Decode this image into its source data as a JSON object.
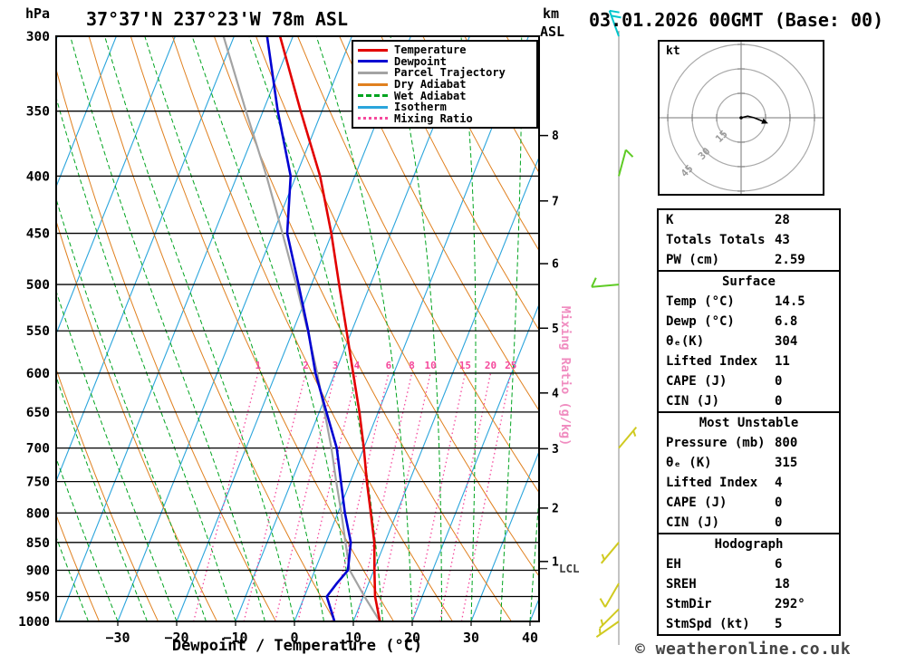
{
  "header": {
    "pressure_unit": "hPa",
    "title": "37°37'N 237°23'W 78m ASL",
    "alt_unit_1": "km",
    "alt_unit_2": "ASL",
    "datetime": "03.01.2026 00GMT (Base: 00)"
  },
  "axes": {
    "xlabel": "Dewpoint / Temperature (°C)",
    "x_ticks": [
      -30,
      -20,
      -10,
      0,
      10,
      20,
      30,
      40
    ],
    "pressure_ticks": [
      300,
      350,
      400,
      450,
      500,
      550,
      600,
      650,
      700,
      750,
      800,
      850,
      900,
      950,
      1000
    ],
    "km_marks": [
      {
        "km": 8,
        "p": 368
      },
      {
        "km": 7,
        "p": 421
      },
      {
        "km": 6,
        "p": 479
      },
      {
        "km": 5,
        "p": 547
      },
      {
        "km": 4,
        "p": 625
      },
      {
        "km": 3,
        "p": 701
      },
      {
        "km": 2,
        "p": 792
      },
      {
        "km": 1,
        "p": 884
      }
    ],
    "lcl": {
      "label": "LCL",
      "p": 897
    },
    "mixing_axis_label": "Mixing Ratio (g/kg)"
  },
  "legend": [
    {
      "label": "Temperature",
      "color": "#e20000",
      "style": "solid"
    },
    {
      "label": "Dewpoint",
      "color": "#0000d2",
      "style": "solid"
    },
    {
      "label": "Parcel Trajectory",
      "color": "#a3a3a3",
      "style": "solid"
    },
    {
      "label": "Dry Adiabat",
      "color": "#e0801f",
      "style": "solid"
    },
    {
      "label": "Wet Adiabat",
      "color": "#00a41f",
      "style": "dashed"
    },
    {
      "label": "Isotherm",
      "color": "#2ba5dc",
      "style": "solid"
    },
    {
      "label": "Mixing Ratio",
      "color": "#f5489c",
      "style": "dotted"
    }
  ],
  "chart_data": {
    "type": "skewt-log-p",
    "pressure_range_hpa": [
      300,
      1000
    ],
    "x_range_c": [
      -40.5,
      41.5
    ],
    "skew_dx_per_dy": 0.4,
    "isotherm_step_c": 10,
    "dry_adiabat_theta_k": {
      "min": 220,
      "max": 400,
      "step": 10
    },
    "wet_adiabat_start_c": {
      "min": -35,
      "max": 40,
      "step": 5
    },
    "mixing_ratio_lines_g_kg": [
      1,
      2,
      3,
      4,
      6,
      8,
      10,
      15,
      20,
      25
    ],
    "colors": {
      "isotherm": "#2ba5dc",
      "dry_adiabat": "#e0801f",
      "wet_adiabat": "#00a41f",
      "mixing_ratio": "#f5489c",
      "temperature": "#e20000",
      "dewpoint": "#0000d2",
      "parcel": "#a3a3a3",
      "isobar": "#000000",
      "wind_column": "#8a8a8a"
    },
    "temperature_profile": [
      [
        1000,
        14.5
      ],
      [
        950,
        12.0
      ],
      [
        900,
        10.1
      ],
      [
        850,
        8.2
      ],
      [
        800,
        5.6
      ],
      [
        750,
        2.8
      ],
      [
        700,
        0.0
      ],
      [
        650,
        -3.2
      ],
      [
        600,
        -6.9
      ],
      [
        550,
        -10.9
      ],
      [
        500,
        -15.3
      ],
      [
        450,
        -20.1
      ],
      [
        400,
        -25.9
      ],
      [
        350,
        -33.6
      ],
      [
        300,
        -42.2
      ]
    ],
    "dewpoint_profile": [
      [
        1000,
        6.8
      ],
      [
        950,
        3.8
      ],
      [
        925,
        4.6
      ],
      [
        900,
        5.6
      ],
      [
        850,
        4.2
      ],
      [
        800,
        1.2
      ],
      [
        750,
        -1.6
      ],
      [
        700,
        -4.6
      ],
      [
        650,
        -8.8
      ],
      [
        600,
        -13.3
      ],
      [
        550,
        -17.4
      ],
      [
        500,
        -22.2
      ],
      [
        450,
        -27.6
      ],
      [
        400,
        -30.9
      ],
      [
        350,
        -37.5
      ],
      [
        300,
        -44.4
      ]
    ],
    "parcel_profile": [
      [
        1000,
        14.5
      ],
      [
        950,
        10.2
      ],
      [
        900,
        5.9
      ],
      [
        850,
        3.3
      ],
      [
        800,
        0.6
      ],
      [
        750,
        -2.4
      ],
      [
        700,
        -5.5
      ],
      [
        650,
        -9.1
      ],
      [
        600,
        -13.0
      ],
      [
        550,
        -17.5
      ],
      [
        500,
        -22.6
      ],
      [
        450,
        -28.4
      ],
      [
        400,
        -35.0
      ],
      [
        350,
        -42.9
      ],
      [
        300,
        -51.8
      ]
    ],
    "wind_barbs": [
      {
        "p": 300,
        "dir": 340,
        "spd": 20,
        "color": "#00c6cc"
      },
      {
        "p": 400,
        "dir": 15,
        "spd": 10,
        "color": "#5ecb24"
      },
      {
        "p": 500,
        "dir": 265,
        "spd": 10,
        "color": "#5ecb24"
      },
      {
        "p": 700,
        "dir": 40,
        "spd": 5,
        "color": "#d0ca20"
      },
      {
        "p": 850,
        "dir": 220,
        "spd": 5,
        "color": "#d0ca20"
      },
      {
        "p": 925,
        "dir": 210,
        "spd": 10,
        "color": "#d0ca20"
      },
      {
        "p": 975,
        "dir": 225,
        "spd": 5,
        "color": "#d0ca20"
      },
      {
        "p": 1000,
        "dir": 235,
        "spd": 5,
        "color": "#d0ca20"
      }
    ]
  },
  "hodograph": {
    "unit": "kt",
    "rings_kt": [
      15,
      30,
      45
    ],
    "trace_kt": [
      [
        0,
        0
      ],
      [
        4,
        1
      ],
      [
        8,
        0
      ],
      [
        13,
        -2
      ]
    ]
  },
  "stats": {
    "sections": [
      {
        "title": "",
        "rows": [
          [
            "K",
            "28"
          ],
          [
            "Totals Totals",
            "43"
          ],
          [
            "PW (cm)",
            "2.59"
          ]
        ]
      },
      {
        "title": "Surface",
        "rows": [
          [
            "Temp (°C)",
            "14.5"
          ],
          [
            "Dewp (°C)",
            "6.8"
          ],
          [
            "θₑ(K)",
            "304"
          ],
          [
            "Lifted Index",
            "11"
          ],
          [
            "CAPE (J)",
            "0"
          ],
          [
            "CIN (J)",
            "0"
          ]
        ]
      },
      {
        "title": "Most Unstable",
        "rows": [
          [
            "Pressure (mb)",
            "800"
          ],
          [
            "θₑ (K)",
            "315"
          ],
          [
            "Lifted Index",
            "4"
          ],
          [
            "CAPE (J)",
            "0"
          ],
          [
            "CIN (J)",
            "0"
          ]
        ]
      },
      {
        "title": "Hodograph",
        "rows": [
          [
            "EH",
            "6"
          ],
          [
            "SREH",
            "18"
          ],
          [
            "StmDir",
            "292°"
          ],
          [
            "StmSpd (kt)",
            "5"
          ]
        ]
      }
    ]
  },
  "footer": {
    "copyright": "© weatheronline.co.uk"
  }
}
